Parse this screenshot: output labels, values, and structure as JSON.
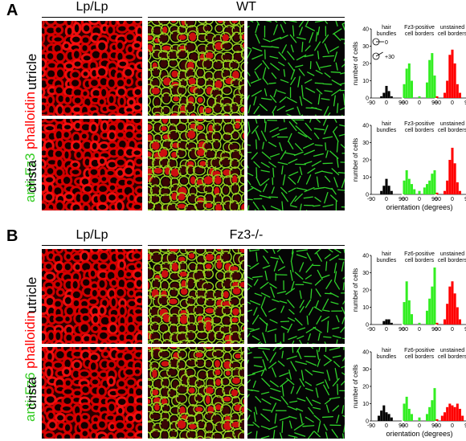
{
  "panels": [
    {
      "letter": "A",
      "column_headers": [
        "Lp/Lp",
        "WT"
      ],
      "stain_label_green": "anti-Fz3",
      "stain_label_red": "phalloidin",
      "rows": [
        "utricle",
        "crista"
      ],
      "chart_titles": [
        "hair bundles",
        "Fz3-positive cell borders",
        "unstained cell borders"
      ]
    },
    {
      "letter": "B",
      "column_headers": [
        "Lp/Lp",
        "Fz3-/-"
      ],
      "stain_label_green": "anti-Fz6",
      "stain_label_red": "phalloidin",
      "rows": [
        "utricle",
        "crista"
      ],
      "chart_titles": [
        "hair bundles",
        "Fz6-positive cell borders",
        "unstained cell borders"
      ]
    }
  ],
  "inset_labels": [
    "0",
    "+30"
  ],
  "colors": {
    "red": "#ff0000",
    "green": "#33ee22",
    "black": "#000000"
  },
  "chart_data": [
    {
      "type": "bar",
      "panel": "A",
      "row": "utricle",
      "ylabel": "number of cells",
      "xlabel": "",
      "ylim": [
        0,
        40
      ],
      "yticks": [
        "0",
        "10",
        "20",
        "30",
        "40"
      ],
      "xticks": [
        "-90",
        "0",
        "90",
        "-90",
        "0",
        "90",
        "-90",
        "0",
        "90"
      ],
      "series": [
        {
          "name": "hair bundles",
          "color": "#000000",
          "x": [
            -30,
            -15,
            0,
            15,
            30
          ],
          "values": [
            1,
            3,
            7,
            4,
            1
          ]
        },
        {
          "name": "Fz3-positive cell borders",
          "color": "#33ee22",
          "x": [
            -90,
            -75,
            -60,
            -45,
            0,
            45,
            60,
            75,
            90
          ],
          "values": [
            8,
            17,
            20,
            10,
            1,
            9,
            22,
            26,
            13
          ]
        },
        {
          "name": "unstained cell borders",
          "color": "#ff0000",
          "x": [
            -90,
            -45,
            -30,
            -15,
            0,
            15,
            30,
            45,
            90
          ],
          "values": [
            1,
            3,
            10,
            25,
            28,
            20,
            8,
            3,
            1
          ]
        }
      ]
    },
    {
      "type": "bar",
      "panel": "A",
      "row": "crista",
      "ylabel": "number of cells",
      "xlabel": "orientation (degrees)",
      "ylim": [
        0,
        40
      ],
      "yticks": [
        "0",
        "10",
        "20",
        "30",
        "40"
      ],
      "xticks": [
        "-90",
        "0",
        "90",
        "-90",
        "0",
        "90",
        "-90",
        "0",
        "90"
      ],
      "series": [
        {
          "name": "hair bundles",
          "color": "#000000",
          "x": [
            -30,
            -15,
            0,
            15,
            30
          ],
          "values": [
            2,
            5,
            9,
            5,
            2
          ]
        },
        {
          "name": "Fz3-positive cell borders",
          "color": "#33ee22",
          "x": [
            -90,
            -75,
            -60,
            -45,
            -30,
            0,
            30,
            45,
            60,
            75,
            90
          ],
          "values": [
            8,
            14,
            9,
            6,
            3,
            2,
            4,
            6,
            8,
            12,
            14
          ]
        },
        {
          "name": "unstained cell borders",
          "color": "#ff0000",
          "x": [
            -90,
            -45,
            -30,
            -15,
            0,
            15,
            30,
            45,
            90
          ],
          "values": [
            1,
            2,
            8,
            20,
            27,
            18,
            7,
            2,
            1
          ]
        }
      ]
    },
    {
      "type": "bar",
      "panel": "B",
      "row": "utricle",
      "ylabel": "number of cells",
      "xlabel": "",
      "ylim": [
        0,
        40
      ],
      "yticks": [
        "0",
        "10",
        "20",
        "30",
        "40"
      ],
      "xticks": [
        "-90",
        "0",
        "90",
        "-90",
        "0",
        "90",
        "-90",
        "0",
        "90"
      ],
      "series": [
        {
          "name": "hair bundles",
          "color": "#000000",
          "x": [
            -15,
            0,
            15,
            30
          ],
          "values": [
            2,
            3,
            3,
            1
          ]
        },
        {
          "name": "Fz6-positive cell borders",
          "color": "#33ee22",
          "x": [
            -90,
            -75,
            -60,
            -45,
            0,
            45,
            60,
            75,
            90
          ],
          "values": [
            13,
            25,
            14,
            6,
            1,
            8,
            15,
            22,
            33
          ]
        },
        {
          "name": "unstained cell borders",
          "color": "#ff0000",
          "x": [
            -90,
            -45,
            -30,
            -15,
            0,
            15,
            30,
            45,
            90
          ],
          "values": [
            1,
            3,
            12,
            22,
            25,
            18,
            10,
            3,
            1
          ]
        }
      ]
    },
    {
      "type": "bar",
      "panel": "B",
      "row": "crista",
      "ylabel": "number of cells",
      "xlabel": "orientation (degrees)",
      "ylim": [
        0,
        40
      ],
      "yticks": [
        "0",
        "10",
        "20",
        "30",
        "40"
      ],
      "xticks": [
        "-90",
        "0",
        "90",
        "-90",
        "0",
        "90",
        "-90",
        "0",
        "90"
      ],
      "series": [
        {
          "name": "hair bundles",
          "color": "#000000",
          "x": [
            -45,
            -30,
            -15,
            0,
            15,
            30
          ],
          "values": [
            3,
            6,
            9,
            5,
            4,
            2
          ]
        },
        {
          "name": "Fz6-positive cell borders",
          "color": "#33ee22",
          "x": [
            -90,
            -75,
            -60,
            -45,
            0,
            45,
            60,
            75,
            90
          ],
          "values": [
            10,
            14,
            7,
            4,
            2,
            4,
            8,
            12,
            19
          ]
        },
        {
          "name": "unstained cell borders",
          "color": "#ff0000",
          "x": [
            -90,
            -60,
            -45,
            -30,
            -15,
            0,
            15,
            30,
            45,
            60,
            90
          ],
          "values": [
            1,
            3,
            5,
            8,
            10,
            9,
            8,
            10,
            7,
            3,
            1
          ]
        }
      ]
    }
  ]
}
